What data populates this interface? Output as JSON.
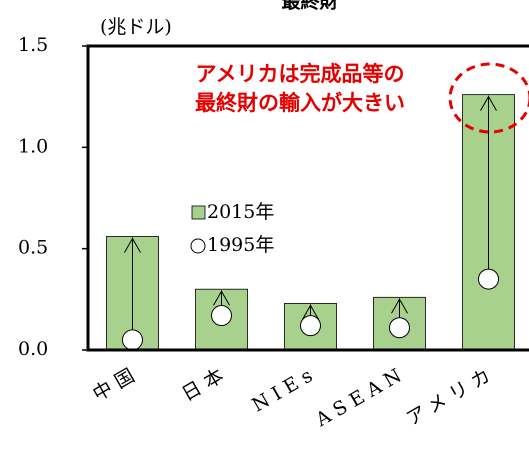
{
  "chart_data": {
    "type": "bar",
    "title": "最終財",
    "y_label": "(兆ドル)",
    "annotation": [
      "アメリカは完成品等の",
      "最終財の輸入が大きい"
    ],
    "categories": [
      "中国",
      "日本",
      "NIEs",
      "ASEAN",
      "アメリカ"
    ],
    "series": [
      {
        "name": "2015年",
        "color": "#a9d18e",
        "marker": "bar",
        "values": [
          0.56,
          0.3,
          0.23,
          0.26,
          1.26
        ]
      },
      {
        "name": "1995年",
        "color": "#ffffff",
        "marker": "circle",
        "values": [
          0.05,
          0.17,
          0.12,
          0.11,
          0.35
        ]
      }
    ],
    "ylim": [
      0,
      1.5
    ],
    "yticks": [
      {
        "value": 0,
        "label": "0.0"
      },
      0.5,
      {
        "value": 1,
        "label": "1.0"
      },
      1.5
    ]
  }
}
